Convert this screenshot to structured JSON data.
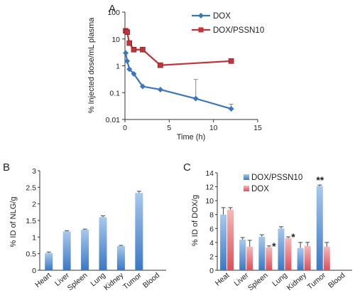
{
  "panels": {
    "A": {
      "letter": "A"
    },
    "B": {
      "letter": "B"
    },
    "C": {
      "letter": "C"
    }
  },
  "colors": {
    "dox_line": "#3a76bd",
    "pssn_line": "#c0343a",
    "bar_blue_top": "#a8c8ec",
    "bar_blue_bottom": "#3a78c4",
    "bar_red_top": "#f4b9b9",
    "bar_red_bottom": "#d9505a",
    "axis": "#333333"
  },
  "chart_data": [
    {
      "panel": "A",
      "type": "line",
      "xlabel": "Time (h)",
      "ylabel": "% Injected dose/mL plasma",
      "xlim": [
        0,
        15
      ],
      "ylim": [
        0.01,
        100
      ],
      "yscale": "log",
      "xticks": [
        "0",
        "5",
        "10",
        "15"
      ],
      "yticks": [
        "0.01",
        "0.1",
        "1",
        "10",
        "100"
      ],
      "legend_position": "top-right",
      "series": [
        {
          "name": "DOX",
          "color": "#3a76bd",
          "marker": "diamond",
          "x": [
            0.083,
            0.25,
            0.5,
            1,
            2,
            4,
            8,
            12
          ],
          "y": [
            3.0,
            1.5,
            0.75,
            0.5,
            0.17,
            0.13,
            0.06,
            0.025
          ],
          "err_plus": [
            0,
            0,
            0,
            0,
            0,
            0,
            0.25,
            0.012
          ]
        },
        {
          "name": "DOX/PSSN10",
          "color": "#c0343a",
          "marker": "square",
          "x": [
            0.083,
            0.25,
            0.5,
            1,
            2,
            4,
            12
          ],
          "y": [
            20,
            18,
            7,
            4,
            4,
            1.05,
            1.5
          ],
          "err_plus": [
            0,
            0,
            0,
            0,
            0,
            0,
            0
          ]
        }
      ]
    },
    {
      "panel": "B",
      "type": "bar",
      "ylabel": "% ID of NLG/g",
      "ylim": [
        0,
        3
      ],
      "yticks": [
        "0",
        "0.5",
        "1",
        "1.5",
        "2",
        "2.5",
        "3"
      ],
      "categories": [
        "Heart",
        "Liver",
        "Spleen",
        "Lung",
        "Kidney",
        "Tumor",
        "Blood"
      ],
      "values": [
        0.52,
        1.17,
        1.22,
        1.6,
        0.73,
        2.33,
        0
      ],
      "errors": [
        0.03,
        0.02,
        0.02,
        0.04,
        0.02,
        0.05,
        0
      ]
    },
    {
      "panel": "C",
      "type": "bar",
      "ylabel": "% ID of DOX/g",
      "ylim": [
        0,
        14
      ],
      "yticks": [
        "0",
        "2",
        "4",
        "6",
        "8",
        "10",
        "12",
        "14"
      ],
      "categories": [
        "Heat",
        "Liver",
        "Spleen",
        "Lung",
        "Kidney",
        "Tumor",
        "Blood"
      ],
      "legend_position": "top-left",
      "series": [
        {
          "name": "DOX/PSSN10",
          "values": [
            8.0,
            4.4,
            4.8,
            6.0,
            3.2,
            12.1,
            0
          ],
          "errors": [
            1.0,
            0.3,
            0.3,
            0.25,
            0.8,
            0.15,
            0
          ]
        },
        {
          "name": "DOX",
          "values": [
            8.7,
            3.4,
            3.3,
            4.6,
            3.5,
            3.4,
            0
          ],
          "errors": [
            0.3,
            0.9,
            0.2,
            0.2,
            0.5,
            0.6,
            0
          ]
        }
      ],
      "annotations": [
        {
          "category": "Spleen",
          "text": "*"
        },
        {
          "category": "Lung",
          "text": "*"
        },
        {
          "category": "Tumor",
          "text": "**"
        }
      ]
    }
  ]
}
